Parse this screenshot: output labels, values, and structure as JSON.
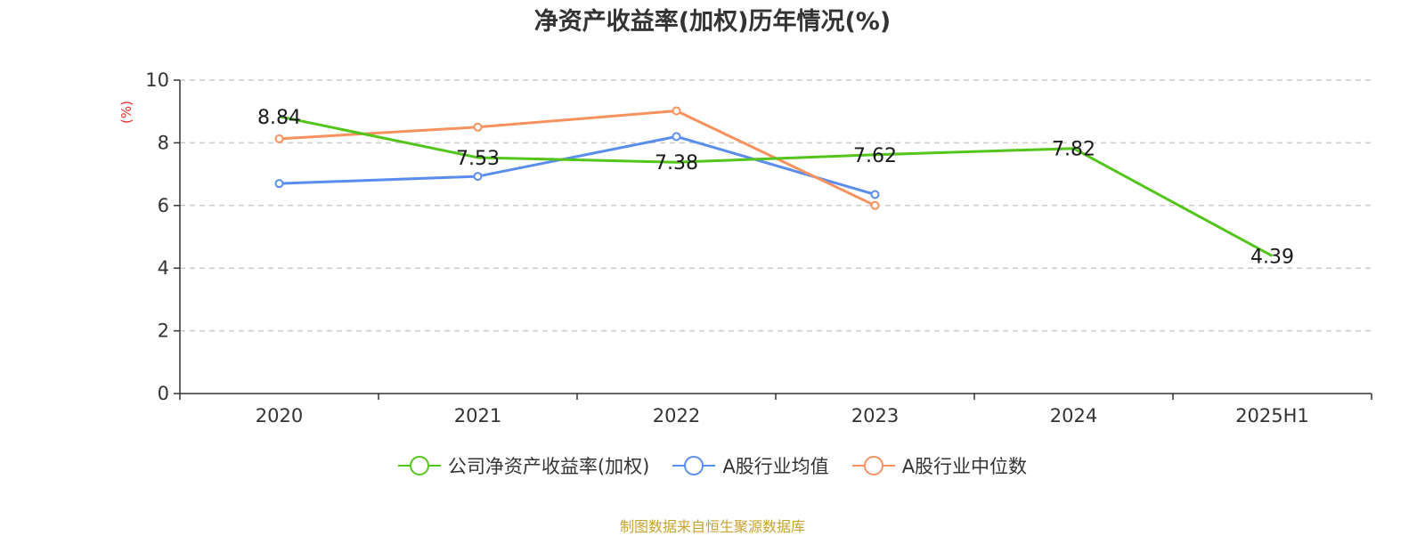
{
  "source": "制图数据来自恒生聚源数据库",
  "colors": {
    "company": "#52c41a",
    "industry_avg": "#5b8def",
    "industry_median": "#f7925e",
    "axis": "#333333",
    "grid": "#cccccc",
    "ylabel": "#e8302b",
    "label": "#1a1a1a"
  },
  "chart_data": {
    "type": "line",
    "title": "净资产收益率(加权)历年情况(%)",
    "ylabel": "(%)",
    "xlabel": "",
    "ylim": [
      0,
      10
    ],
    "yticks": [
      0,
      2,
      4,
      6,
      8,
      10
    ],
    "grid": true,
    "legend_position": "bottom",
    "categories": [
      "2020",
      "2021",
      "2022",
      "2023",
      "2024",
      "2025H1"
    ],
    "series": [
      {
        "name": "公司净资产收益率(加权)",
        "color_key": "company",
        "values": [
          8.84,
          7.53,
          7.38,
          7.62,
          7.82,
          4.39
        ],
        "labels": [
          "8.84",
          "7.53",
          "7.38",
          "7.62",
          "7.82",
          "4.39"
        ]
      },
      {
        "name": "A股行业均值",
        "color_key": "industry_avg",
        "values": [
          6.7,
          6.93,
          8.2,
          6.35,
          null,
          null
        ]
      },
      {
        "name": "A股行业中位数",
        "color_key": "industry_median",
        "values": [
          8.13,
          8.5,
          9.02,
          6.0,
          null,
          null
        ]
      }
    ]
  }
}
